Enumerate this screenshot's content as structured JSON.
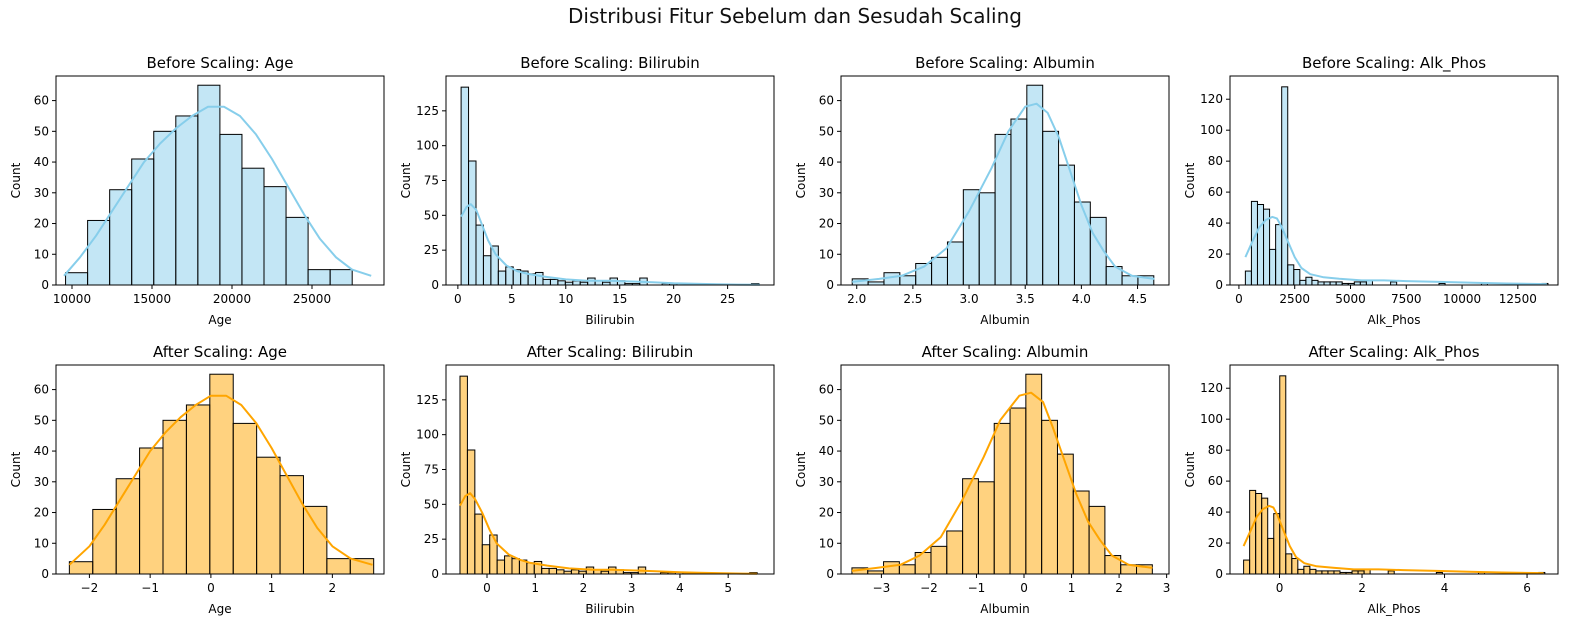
{
  "suptitle": "Distribusi Fitur Sebelum dan Sesudah Scaling",
  "colors": {
    "before_fill": "#87CEEB",
    "before_kde": "#87CEEB",
    "after_fill": "#FFA500",
    "after_kde": "#FFA500",
    "edge": "#000000"
  },
  "chart_data": [
    {
      "type": "bar",
      "title": "Before Scaling: Age",
      "xlabel": "Age",
      "ylabel": "Count",
      "xlim": [
        9000,
        29500
      ],
      "ylim": [
        0,
        68
      ],
      "xticks": [
        10000,
        15000,
        20000,
        25000
      ],
      "yticks": [
        0,
        10,
        20,
        30,
        40,
        50,
        60
      ],
      "bin_start": 9598,
      "bin_width": 1378,
      "counts": [
        4,
        21,
        31,
        41,
        50,
        55,
        65,
        49,
        38,
        32,
        22,
        5,
        5
      ],
      "kde": [
        [
          9500,
          3
        ],
        [
          10500,
          9
        ],
        [
          11500,
          16
        ],
        [
          12500,
          24
        ],
        [
          13500,
          32
        ],
        [
          14500,
          40
        ],
        [
          15500,
          46
        ],
        [
          16500,
          51
        ],
        [
          17500,
          55
        ],
        [
          18500,
          58
        ],
        [
          19500,
          58
        ],
        [
          20500,
          55
        ],
        [
          21500,
          49
        ],
        [
          22500,
          41
        ],
        [
          23500,
          32
        ],
        [
          24500,
          23
        ],
        [
          25500,
          15
        ],
        [
          26500,
          9
        ],
        [
          27500,
          5
        ],
        [
          28700,
          3
        ]
      ],
      "theme": "before"
    },
    {
      "type": "bar",
      "title": "Before Scaling: Bilirubin",
      "xlabel": "Bilirubin",
      "ylabel": "Count",
      "xlim": [
        -1.1,
        29.3
      ],
      "ylim": [
        0,
        150
      ],
      "xticks": [
        0,
        5,
        10,
        15,
        20,
        25
      ],
      "yticks": [
        0,
        25,
        50,
        75,
        100,
        125
      ],
      "bin_start": 0.3,
      "bin_width": 0.69,
      "counts": [
        142,
        89,
        43,
        21,
        28,
        10,
        13,
        11,
        10,
        8,
        9,
        4,
        4,
        3,
        2,
        3,
        2,
        5,
        3,
        2,
        5,
        3,
        1,
        1,
        5,
        0,
        0,
        1,
        1,
        0,
        1,
        0,
        0,
        0,
        0,
        0,
        0,
        0,
        0,
        1
      ],
      "kde": [
        [
          0.3,
          49
        ],
        [
          0.8,
          56
        ],
        [
          1.2,
          58
        ],
        [
          1.7,
          54
        ],
        [
          2.2,
          44
        ],
        [
          2.8,
          32
        ],
        [
          3.5,
          22
        ],
        [
          4.5,
          14
        ],
        [
          5.5,
          10
        ],
        [
          6.5,
          8
        ],
        [
          8,
          6
        ],
        [
          10,
          4
        ],
        [
          12,
          3
        ],
        [
          14,
          3
        ],
        [
          16,
          2.5
        ],
        [
          18,
          2
        ],
        [
          20,
          1.3
        ],
        [
          22,
          0.9
        ],
        [
          24,
          0.5
        ],
        [
          26,
          0.3
        ],
        [
          28,
          0.2
        ]
      ],
      "theme": "before"
    },
    {
      "type": "bar",
      "title": "Before Scaling: Albumin",
      "xlabel": "Albumin",
      "ylabel": "Count",
      "xlim": [
        1.86,
        4.78
      ],
      "ylim": [
        0,
        68
      ],
      "xticks": [
        2.0,
        2.5,
        3.0,
        3.5,
        4.0,
        4.5
      ],
      "xtick_labels": [
        "2.0",
        "2.5",
        "3.0",
        "3.5",
        "4.0",
        "4.5"
      ],
      "yticks": [
        0,
        10,
        20,
        30,
        40,
        50,
        60
      ],
      "bin_start": 1.96,
      "bin_width": 0.1413,
      "counts": [
        2,
        1,
        4,
        3,
        7,
        9,
        14,
        31,
        30,
        49,
        54,
        65,
        50,
        39,
        27,
        22,
        6,
        3,
        3
      ],
      "kde": [
        [
          1.96,
          1
        ],
        [
          2.2,
          2
        ],
        [
          2.4,
          3
        ],
        [
          2.6,
          6
        ],
        [
          2.8,
          12
        ],
        [
          3.0,
          24
        ],
        [
          3.2,
          38
        ],
        [
          3.35,
          50
        ],
        [
          3.5,
          58
        ],
        [
          3.6,
          59
        ],
        [
          3.7,
          56
        ],
        [
          3.8,
          48
        ],
        [
          3.9,
          37
        ],
        [
          4.0,
          26
        ],
        [
          4.1,
          17
        ],
        [
          4.2,
          11
        ],
        [
          4.3,
          6
        ],
        [
          4.45,
          3
        ],
        [
          4.65,
          2
        ]
      ],
      "theme": "before"
    },
    {
      "type": "bar",
      "title": "Before Scaling: Alk_Phos",
      "xlabel": "Alk_Phos",
      "ylabel": "Count",
      "xlim": [
        -400,
        14300
      ],
      "ylim": [
        0,
        135
      ],
      "xticks": [
        0,
        2500,
        5000,
        7500,
        10000,
        12500
      ],
      "yticks": [
        0,
        20,
        40,
        60,
        80,
        100,
        120
      ],
      "bin_start": 289,
      "bin_width": 271.2,
      "counts": [
        9,
        54,
        52,
        49,
        23,
        39,
        128,
        13,
        10,
        3,
        5,
        3,
        2,
        2,
        2,
        2,
        1,
        1,
        2,
        2,
        3,
        0,
        0,
        0,
        2,
        0,
        0,
        0,
        0,
        0,
        0,
        0,
        1,
        0,
        0,
        0,
        0,
        0,
        0,
        1,
        0,
        0,
        0,
        0,
        0,
        0,
        0,
        0,
        0,
        1
      ],
      "kde": [
        [
          289,
          18
        ],
        [
          600,
          28
        ],
        [
          900,
          37
        ],
        [
          1200,
          42
        ],
        [
          1500,
          44
        ],
        [
          1700,
          43
        ],
        [
          1900,
          38
        ],
        [
          2200,
          28
        ],
        [
          2500,
          18
        ],
        [
          2800,
          11
        ],
        [
          3200,
          7
        ],
        [
          3800,
          5
        ],
        [
          4500,
          4
        ],
        [
          5500,
          3
        ],
        [
          6500,
          3
        ],
        [
          7500,
          2.5
        ],
        [
          9000,
          2
        ],
        [
          10500,
          1.5
        ],
        [
          12000,
          1
        ],
        [
          13800,
          0.6
        ]
      ],
      "theme": "before"
    },
    {
      "type": "bar",
      "title": "After Scaling: Age",
      "xlabel": "Age",
      "ylabel": "Count",
      "xlim": [
        -2.55,
        2.85
      ],
      "ylim": [
        0,
        68
      ],
      "xticks": [
        -2,
        -1,
        0,
        1,
        2
      ],
      "xtick_labels": [
        "−2",
        "−1",
        "0",
        "1",
        "2"
      ],
      "yticks": [
        0,
        10,
        20,
        30,
        40,
        50,
        60
      ],
      "bin_start": -2.33,
      "bin_width": 0.3854,
      "counts": [
        4,
        21,
        31,
        41,
        50,
        55,
        65,
        49,
        38,
        32,
        22,
        5,
        5
      ],
      "kde": [
        [
          -2.33,
          3
        ],
        [
          -2.0,
          9
        ],
        [
          -1.75,
          16
        ],
        [
          -1.5,
          24
        ],
        [
          -1.25,
          32
        ],
        [
          -1.0,
          40
        ],
        [
          -0.75,
          46
        ],
        [
          -0.5,
          51
        ],
        [
          -0.25,
          55
        ],
        [
          0,
          58
        ],
        [
          0.25,
          58
        ],
        [
          0.5,
          55
        ],
        [
          0.75,
          49
        ],
        [
          1.0,
          41
        ],
        [
          1.25,
          32
        ],
        [
          1.5,
          23
        ],
        [
          1.75,
          15
        ],
        [
          2.0,
          9
        ],
        [
          2.3,
          5
        ],
        [
          2.66,
          3
        ]
      ],
      "theme": "after"
    },
    {
      "type": "bar",
      "title": "After Scaling: Bilirubin",
      "xlabel": "Bilirubin",
      "ylabel": "Count",
      "xlim": [
        -0.85,
        5.95
      ],
      "ylim": [
        0,
        150
      ],
      "xticks": [
        0,
        1,
        2,
        3,
        4,
        5
      ],
      "yticks": [
        0,
        25,
        50,
        75,
        100,
        125
      ],
      "bin_start": -0.56,
      "bin_width": 0.154,
      "counts": [
        142,
        89,
        43,
        21,
        28,
        10,
        13,
        11,
        10,
        8,
        9,
        4,
        4,
        3,
        2,
        3,
        2,
        5,
        3,
        2,
        5,
        3,
        1,
        1,
        5,
        0,
        0,
        1,
        1,
        0,
        1,
        0,
        0,
        0,
        0,
        0,
        0,
        0,
        0,
        1
      ],
      "kde": [
        [
          -0.56,
          49
        ],
        [
          -0.45,
          56
        ],
        [
          -0.35,
          58
        ],
        [
          -0.25,
          54
        ],
        [
          -0.1,
          44
        ],
        [
          0.05,
          32
        ],
        [
          0.2,
          22
        ],
        [
          0.45,
          14
        ],
        [
          0.7,
          10
        ],
        [
          0.9,
          8
        ],
        [
          1.25,
          6
        ],
        [
          1.7,
          4
        ],
        [
          2.2,
          3
        ],
        [
          2.6,
          3
        ],
        [
          3.1,
          2.5
        ],
        [
          3.5,
          2
        ],
        [
          4.0,
          1.3
        ],
        [
          4.4,
          0.9
        ],
        [
          4.9,
          0.5
        ],
        [
          5.3,
          0.3
        ],
        [
          5.6,
          0.2
        ]
      ],
      "theme": "after"
    },
    {
      "type": "bar",
      "title": "After Scaling: Albumin",
      "xlabel": "Albumin",
      "ylabel": "Count",
      "xlim": [
        -3.85,
        3.05
      ],
      "ylim": [
        0,
        68
      ],
      "xticks": [
        -3,
        -2,
        -1,
        0,
        1,
        2,
        3
      ],
      "xtick_labels": [
        "−3",
        "−2",
        "−1",
        "0",
        "1",
        "2",
        "3"
      ],
      "yticks": [
        0,
        10,
        20,
        30,
        40,
        50,
        60
      ],
      "bin_start": -3.62,
      "bin_width": 0.3326,
      "counts": [
        2,
        1,
        4,
        3,
        7,
        9,
        14,
        31,
        30,
        49,
        54,
        65,
        50,
        39,
        27,
        22,
        6,
        3,
        3
      ],
      "kde": [
        [
          -3.62,
          1
        ],
        [
          -3.1,
          2
        ],
        [
          -2.6,
          3
        ],
        [
          -2.2,
          6
        ],
        [
          -1.75,
          12
        ],
        [
          -1.3,
          24
        ],
        [
          -0.85,
          38
        ],
        [
          -0.5,
          50
        ],
        [
          -0.1,
          58
        ],
        [
          0.15,
          59
        ],
        [
          0.4,
          56
        ],
        [
          0.6,
          48
        ],
        [
          0.85,
          37
        ],
        [
          1.1,
          26
        ],
        [
          1.35,
          17
        ],
        [
          1.6,
          11
        ],
        [
          1.85,
          6
        ],
        [
          2.2,
          3
        ],
        [
          2.7,
          2
        ]
      ],
      "theme": "after"
    },
    {
      "type": "bar",
      "title": "After Scaling: Alk_Phos",
      "xlabel": "Alk_Phos",
      "ylabel": "Count",
      "xlim": [
        -1.2,
        6.75
      ],
      "ylim": [
        0,
        135
      ],
      "xticks": [
        0,
        2,
        4,
        6
      ],
      "yticks": [
        0,
        20,
        40,
        60,
        80,
        100,
        120
      ],
      "bin_start": -0.87,
      "bin_width": 0.146,
      "counts": [
        9,
        54,
        52,
        49,
        23,
        39,
        128,
        13,
        10,
        3,
        5,
        3,
        2,
        2,
        2,
        2,
        1,
        1,
        2,
        2,
        3,
        0,
        0,
        0,
        2,
        0,
        0,
        0,
        0,
        0,
        0,
        0,
        1,
        0,
        0,
        0,
        0,
        0,
        0,
        1,
        0,
        0,
        0,
        0,
        0,
        0,
        0,
        0,
        0,
        1
      ],
      "kde": [
        [
          -0.87,
          18
        ],
        [
          -0.7,
          28
        ],
        [
          -0.55,
          37
        ],
        [
          -0.4,
          42
        ],
        [
          -0.25,
          44
        ],
        [
          -0.15,
          43
        ],
        [
          -0.05,
          38
        ],
        [
          0.1,
          28
        ],
        [
          0.25,
          18
        ],
        [
          0.4,
          11
        ],
        [
          0.6,
          7
        ],
        [
          0.9,
          5
        ],
        [
          1.3,
          4
        ],
        [
          1.8,
          3
        ],
        [
          2.4,
          3
        ],
        [
          3.0,
          2.5
        ],
        [
          3.8,
          2
        ],
        [
          4.6,
          1.5
        ],
        [
          5.4,
          1
        ],
        [
          6.4,
          0.6
        ]
      ],
      "theme": "after"
    }
  ]
}
